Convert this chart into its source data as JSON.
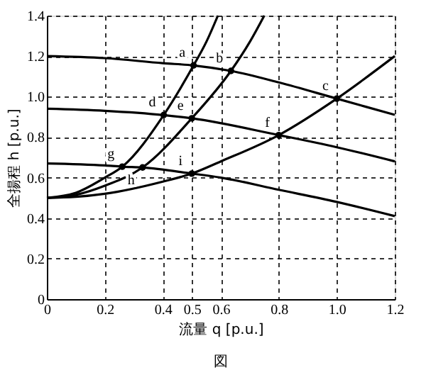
{
  "chart_data": {
    "type": "line",
    "xlabel": "流量 q [p.u.]",
    "ylabel": "全揚程 h [p.u.]",
    "xlim": [
      0,
      1.2
    ],
    "ylim": [
      0,
      1.4
    ],
    "xticks": [
      0,
      0.2,
      0.4,
      0.5,
      0.6,
      0.8,
      {
        "value": 1,
        "label": "1.0"
      },
      1.2
    ],
    "yticks": [
      0,
      0.2,
      0.4,
      0.6,
      0.8,
      {
        "value": 1,
        "label": "1.0"
      },
      1.2,
      1.4
    ],
    "grid": true,
    "line_style": "solid",
    "marker": "none",
    "series": [
      {
        "color": "#000000",
        "x": [
          0,
          0.2,
          0.4,
          0.506,
          0.635,
          0.8,
          1.0,
          1.2
        ],
        "values": [
          1.2,
          1.19,
          1.165,
          1.154,
          1.127,
          1.07,
          0.99,
          0.91
        ]
      },
      {
        "color": "#000000",
        "x": [
          0,
          0.2,
          0.403,
          0.5,
          0.8,
          1.0,
          1.2
        ],
        "values": [
          0.94,
          0.93,
          0.909,
          0.893,
          0.81,
          0.75,
          0.68
        ]
      },
      {
        "color": "#000000",
        "x": [
          0,
          0.2,
          0.26,
          0.33,
          0.5,
          0.6,
          0.8,
          1.0,
          1.2
        ],
        "values": [
          0.67,
          0.66,
          0.654,
          0.65,
          0.62,
          0.6,
          0.54,
          0.48,
          0.41
        ]
      },
      {
        "color": "#000000",
        "x": [
          0,
          0.1,
          0.2,
          0.4,
          0.5,
          0.6,
          0.8,
          1.0,
          1.2
        ],
        "values": [
          0.5,
          0.505,
          0.52,
          0.58,
          0.62,
          0.68,
          0.81,
          0.99,
          1.2
        ]
      },
      {
        "color": "#000000",
        "x": [
          0,
          0.1,
          0.2,
          0.33,
          0.5,
          0.635,
          0.7,
          0.75
        ],
        "values": [
          0.5,
          0.515,
          0.56,
          0.65,
          0.893,
          1.127,
          1.27,
          1.4
        ]
      },
      {
        "color": "#000000",
        "x": [
          0,
          0.1,
          0.2,
          0.26,
          0.403,
          0.506,
          0.55,
          0.59
        ],
        "values": [
          0.5,
          0.525,
          0.6,
          0.654,
          0.909,
          1.154,
          1.27,
          1.4
        ]
      },
      {
        "type": "scatter",
        "marker": "circle",
        "color": "#000000",
        "x": [
          0.506,
          0.635,
          1.0,
          0.403,
          0.5,
          0.8,
          0.26,
          0.33,
          0.5
        ],
        "values": [
          1.154,
          1.127,
          0.99,
          0.909,
          0.893,
          0.81,
          0.654,
          0.65,
          0.62
        ]
      }
    ],
    "annotations": [
      {
        "text": "a",
        "x": 0.506,
        "y": 1.154
      },
      {
        "text": "b",
        "x": 0.635,
        "y": 1.127
      },
      {
        "text": "c",
        "x": 1.0,
        "y": 0.99
      },
      {
        "text": "d",
        "x": 0.403,
        "y": 0.909
      },
      {
        "text": "e",
        "x": 0.5,
        "y": 0.893
      },
      {
        "text": "f",
        "x": 0.8,
        "y": 0.81
      },
      {
        "text": "g",
        "x": 0.26,
        "y": 0.654
      },
      {
        "text": "h",
        "x": 0.33,
        "y": 0.65
      },
      {
        "text": "i",
        "x": 0.5,
        "y": 0.62
      },
      "図"
    ]
  }
}
